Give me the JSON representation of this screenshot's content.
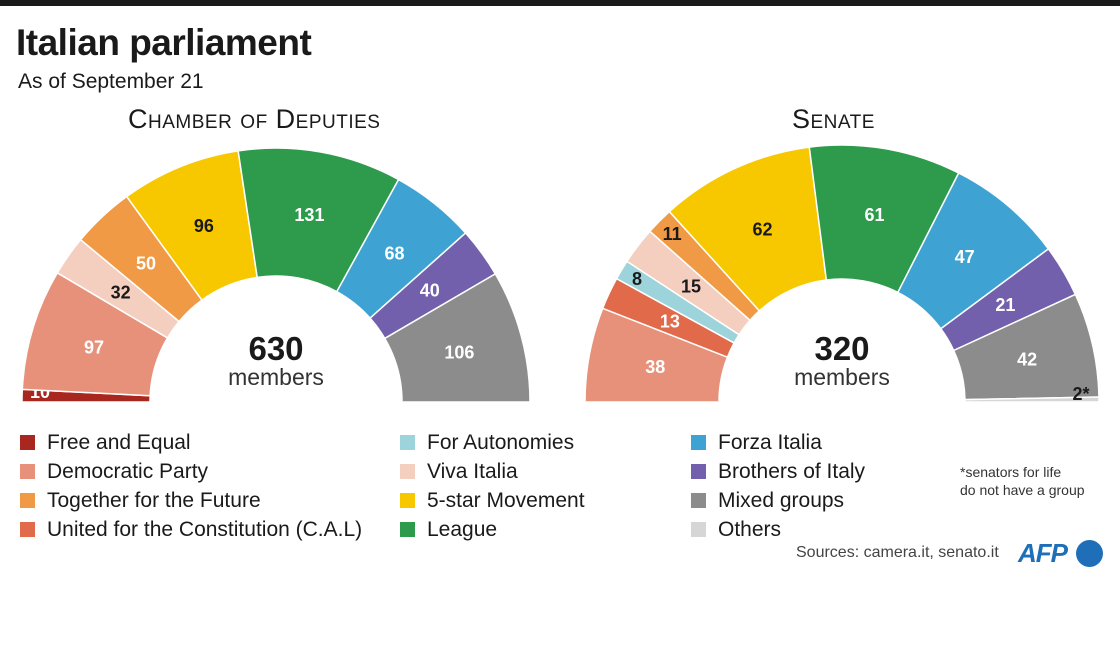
{
  "title": "Italian parliament",
  "subtitle": "As of September 21",
  "colors": {
    "free_and_equal": "#a8271f",
    "democratic_party": "#e8917a",
    "together_future": "#f09a45",
    "united_constitution": "#e06a4a",
    "for_autonomies": "#9dd3da",
    "viva_italia": "#f4cfc0",
    "five_star": "#f7c800",
    "league": "#2e9a4c",
    "forza_italia": "#3ea3d2",
    "brothers_italy": "#7360ad",
    "mixed_groups": "#8c8c8c",
    "others": "#d6d6d6"
  },
  "chart_data": [
    {
      "type": "semicircle",
      "title": "Chamber of Deputies",
      "total": "630",
      "total_label": "members",
      "segments": [
        {
          "party": "Free and Equal",
          "value": 10,
          "label": "10",
          "color": "#a8271f"
        },
        {
          "party": "Democratic Party",
          "value": 97,
          "label": "97",
          "color": "#e8917a"
        },
        {
          "party": "Viva Italia",
          "value": 32,
          "label": "32",
          "color": "#f4cfc0"
        },
        {
          "party": "Together for the Future",
          "value": 50,
          "label": "50",
          "color": "#f09a45"
        },
        {
          "party": "5-star Movement",
          "value": 96,
          "label": "96",
          "color": "#f7c800"
        },
        {
          "party": "League",
          "value": 131,
          "label": "131",
          "color": "#2e9a4c"
        },
        {
          "party": "Forza Italia",
          "value": 68,
          "label": "68",
          "color": "#3ea3d2"
        },
        {
          "party": "Brothers of Italy",
          "value": 40,
          "label": "40",
          "color": "#7360ad"
        },
        {
          "party": "Mixed groups",
          "value": 106,
          "label": "106",
          "color": "#8c8c8c"
        }
      ]
    },
    {
      "type": "semicircle",
      "title": "Senate",
      "total": "320",
      "total_label": "members",
      "segments": [
        {
          "party": "Democratic Party",
          "value": 38,
          "label": "38",
          "color": "#e8917a"
        },
        {
          "party": "United for the Constitution (C.A.L)",
          "value": 13,
          "label": "13",
          "color": "#e06a4a"
        },
        {
          "party": "For Autonomies",
          "value": 8,
          "label": "8",
          "color": "#9dd3da"
        },
        {
          "party": "Viva Italia",
          "value": 15,
          "label": "15",
          "color": "#f4cfc0"
        },
        {
          "party": "Together for the Future",
          "value": 11,
          "label": "11",
          "color": "#f09a45"
        },
        {
          "party": "5-star Movement",
          "value": 62,
          "label": "62",
          "color": "#f7c800"
        },
        {
          "party": "League",
          "value": 61,
          "label": "61",
          "color": "#2e9a4c"
        },
        {
          "party": "Forza Italia",
          "value": 47,
          "label": "47",
          "color": "#3ea3d2"
        },
        {
          "party": "Brothers of Italy",
          "value": 21,
          "label": "21",
          "color": "#7360ad"
        },
        {
          "party": "Mixed groups",
          "value": 42,
          "label": "42",
          "color": "#8c8c8c"
        },
        {
          "party": "Others",
          "value": 2,
          "label": "2*",
          "color": "#d6d6d6"
        }
      ]
    }
  ],
  "legend": [
    [
      {
        "label": "Free and Equal",
        "color": "#a8271f"
      },
      {
        "label": "Democratic Party",
        "color": "#e8917a"
      },
      {
        "label": "Together for the Future",
        "color": "#f09a45"
      },
      {
        "label": "United for the Constitution (C.A.L)",
        "color": "#e06a4a"
      }
    ],
    [
      {
        "label": "For Autonomies",
        "color": "#9dd3da"
      },
      {
        "label": "Viva Italia",
        "color": "#f4cfc0"
      },
      {
        "label": "5-star Movement",
        "color": "#f7c800"
      },
      {
        "label": "League",
        "color": "#2e9a4c"
      }
    ],
    [
      {
        "label": "Forza Italia",
        "color": "#3ea3d2"
      },
      {
        "label": "Brothers of Italy",
        "color": "#7360ad"
      },
      {
        "label": "Mixed groups",
        "color": "#8c8c8c"
      },
      {
        "label": "Others",
        "color": "#d6d6d6"
      }
    ]
  ],
  "footnote": [
    "*senators for life",
    "do not have a group"
  ],
  "sources": "Sources: camera.it, senato.it",
  "brand": "AFP"
}
